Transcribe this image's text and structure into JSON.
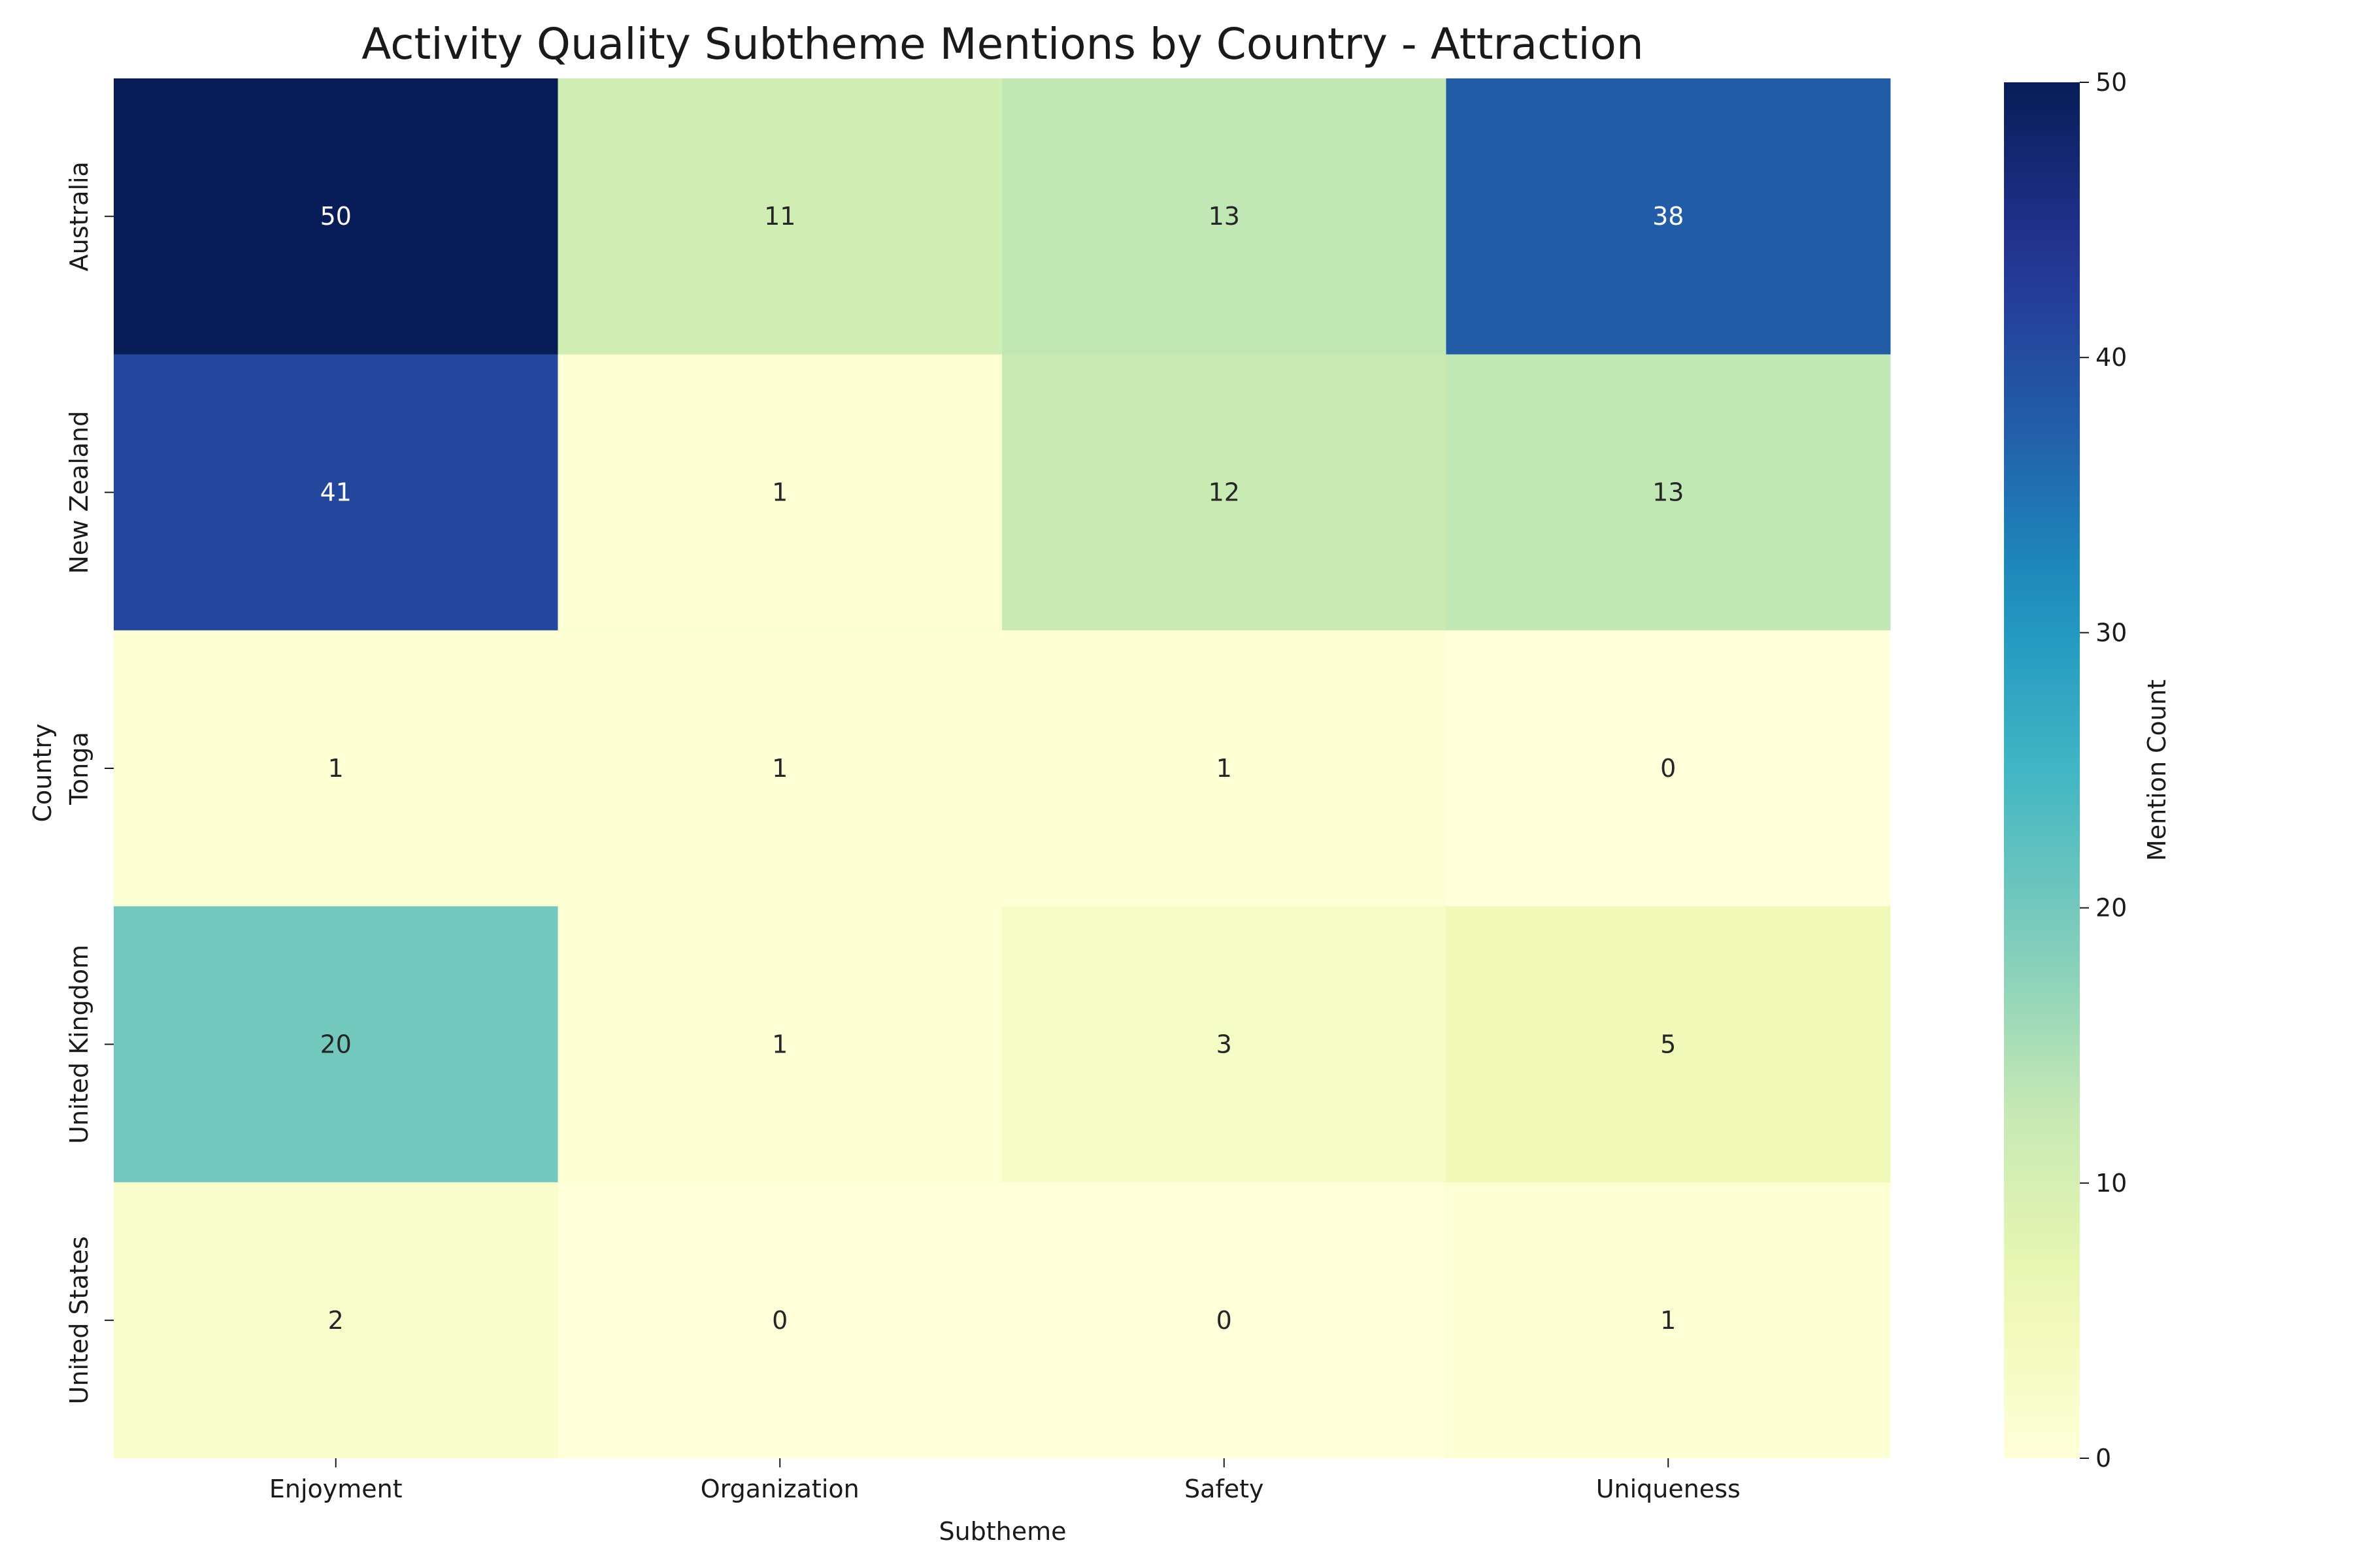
{
  "chart_data": {
    "type": "heatmap",
    "title": "Activity Quality Subtheme Mentions by Country - Attraction",
    "xlabel": "Subtheme",
    "ylabel": "Country",
    "x_categories": [
      "Enjoyment",
      "Organization",
      "Safety",
      "Uniqueness"
    ],
    "y_categories": [
      "Australia",
      "New Zealand",
      "Tonga",
      "United Kingdom",
      "United States"
    ],
    "values": [
      [
        50,
        11,
        13,
        38
      ],
      [
        41,
        1,
        12,
        13
      ],
      [
        1,
        1,
        1,
        0
      ],
      [
        20,
        1,
        3,
        5
      ],
      [
        2,
        0,
        0,
        1
      ]
    ],
    "annotated": true,
    "colormap": "YlGnBu",
    "vmin": 0,
    "vmax": 50,
    "colorbar": {
      "label": "Mention Count",
      "ticks": [
        0,
        10,
        20,
        30,
        40,
        50
      ]
    },
    "grid": false,
    "legend": "none"
  }
}
